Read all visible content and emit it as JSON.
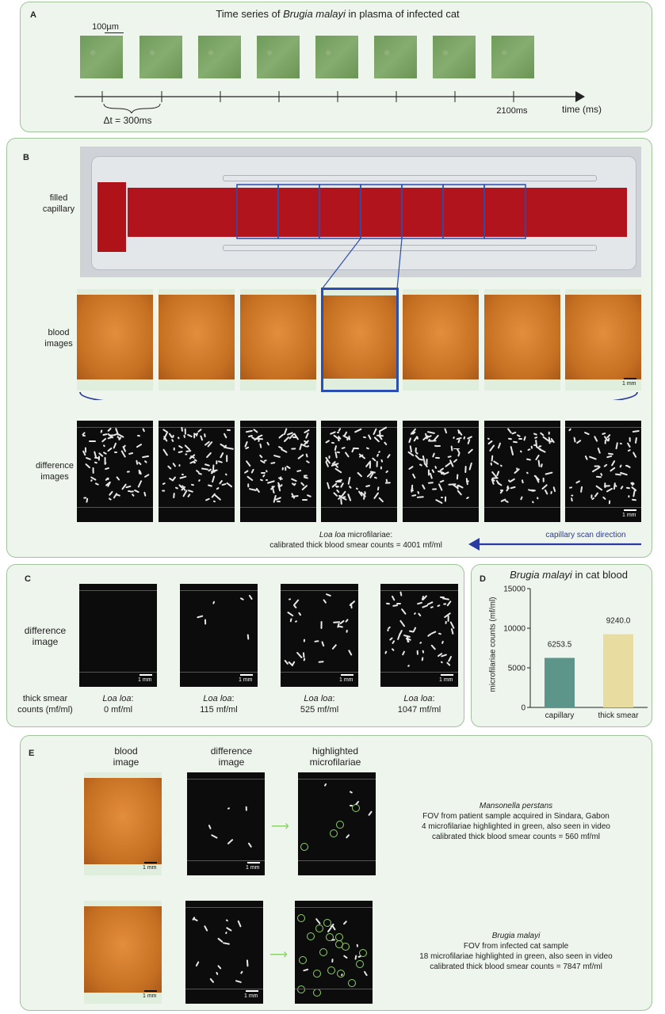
{
  "panelA": {
    "label": "A",
    "title_pre": "Time series of ",
    "title_em": "Brugia malayi",
    "title_post": " in plasma of infected cat",
    "scale": "100µm",
    "delta": "Δt = 300ms",
    "end_time": "2100ms",
    "axis": "time (ms)"
  },
  "panelB": {
    "label": "B",
    "filled_capillary": [
      "filled",
      "capillary"
    ],
    "blood_images": [
      "blood",
      "images"
    ],
    "difference_images": [
      "difference",
      "images"
    ],
    "scale": "1 mm",
    "caption_em": "Loa loa",
    "caption_1": " microfilariae:",
    "caption_2": "calibrated thick blood smear counts = 4001 mf/ml",
    "scan_direction": "capillary scan direction"
  },
  "panelC": {
    "label": "C",
    "row_label": [
      "difference",
      "image"
    ],
    "counts_label": [
      "thick smear",
      "counts (mf/ml)"
    ],
    "scale": "1 mm",
    "species": "Loa loa",
    "values": [
      "0 mf/ml",
      "115 mf/ml",
      "525 mf/ml",
      "1047 mf/ml"
    ]
  },
  "panelD": {
    "label": "D",
    "title_em": "Brugia malayi",
    "title_post": " in cat blood",
    "ylabel": "microfilariae counts (mf/ml)"
  },
  "chart_data": {
    "type": "bar",
    "title": "Brugia malayi in cat blood",
    "categories": [
      "capillary",
      "thick smear"
    ],
    "values": [
      6253.5,
      9240.0
    ],
    "value_labels": [
      "6253.5",
      "9240.0"
    ],
    "ylabel": "microfilariae counts (mf/ml)",
    "ylim": [
      0,
      15000
    ],
    "yticks": [
      "0",
      "5000",
      "10000",
      "15000"
    ],
    "colors": [
      "#5e958a",
      "#e8dca0"
    ]
  },
  "panelE": {
    "label": "E",
    "col1": [
      "blood",
      "image"
    ],
    "col2": [
      "difference",
      "image"
    ],
    "col3": [
      "highlighted",
      "microfilariae"
    ],
    "scale": "1 mm",
    "row1": {
      "species": "Mansonella perstans",
      "line1": "FOV from patient sample acquired in Sindara, Gabon",
      "line2": "4 microfilariae highlighted in green, also seen in video",
      "line3": "calibrated thick blood smear counts = 560 mf/ml"
    },
    "row2": {
      "species": "Brugia malayi",
      "line1": "FOV from infected cat sample",
      "line2": "18 microfilariae highlighted in green, also seen in video",
      "line3": "calibrated thick blood smear counts = 7847 mf/ml"
    }
  }
}
